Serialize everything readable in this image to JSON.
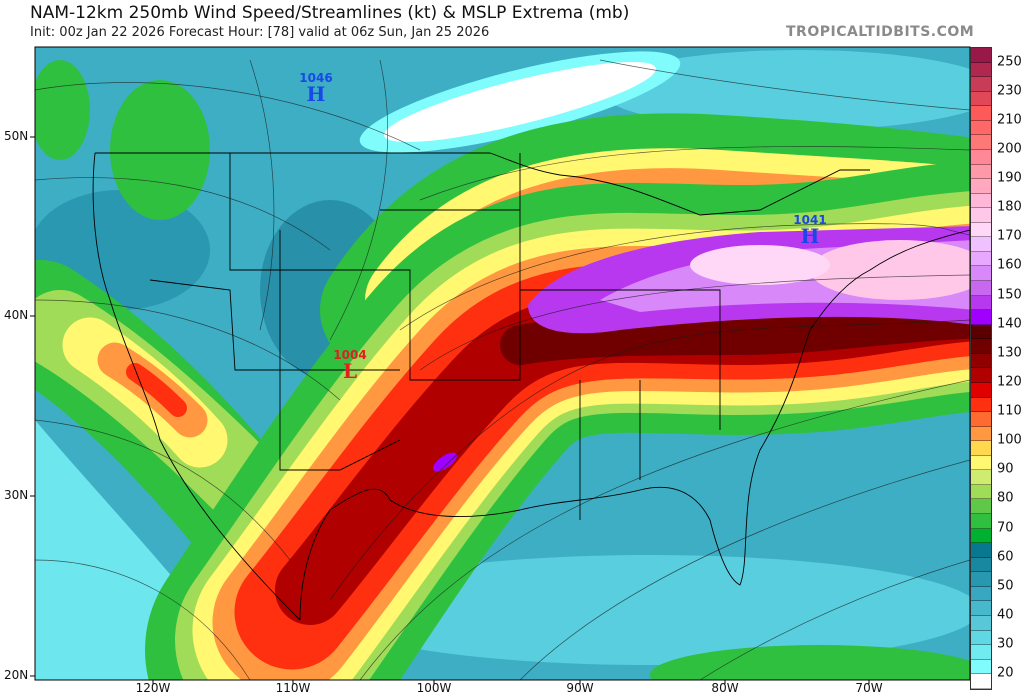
{
  "header": {
    "title": "NAM-12km 250mb Wind Speed/Streamlines (kt) & MSLP Extrema (mb)",
    "subtitle": "Init: 00z Jan 22 2026   Forecast Hour: [78]   valid at 06z Sun, Jan 25 2026",
    "watermark": "TROPICALTIDBITS.COM"
  },
  "axes": {
    "lat_labels": [
      "50N",
      "40N",
      "30N",
      "20N"
    ],
    "lon_labels": [
      "120W",
      "110W",
      "100W",
      "90W",
      "80W",
      "70W"
    ]
  },
  "pressure_centers": [
    {
      "type": "H",
      "value": "1046",
      "color": "#1848e8"
    },
    {
      "type": "L",
      "value": "1004",
      "color": "#e02020"
    },
    {
      "type": "H",
      "value": "1041",
      "color": "#1848e8"
    }
  ],
  "colorbar": {
    "units": "kt",
    "bins": [
      {
        "color": "#981848",
        "label": "250"
      },
      {
        "color": "#b02850",
        "label": ""
      },
      {
        "color": "#c83c58",
        "label": "230"
      },
      {
        "color": "#e04858",
        "label": ""
      },
      {
        "color": "#ff5a5a",
        "label": "210"
      },
      {
        "color": "#ff6868",
        "label": ""
      },
      {
        "color": "#ff7878",
        "label": "200"
      },
      {
        "color": "#ff8898",
        "label": ""
      },
      {
        "color": "#ff98a8",
        "label": "190"
      },
      {
        "color": "#ffa8c0",
        "label": ""
      },
      {
        "color": "#ffb8d8",
        "label": "180"
      },
      {
        "color": "#ffc8e8",
        "label": ""
      },
      {
        "color": "#ffd8f8",
        "label": "170"
      },
      {
        "color": "#f0c0ff",
        "label": ""
      },
      {
        "color": "#e8a8ff",
        "label": "160"
      },
      {
        "color": "#d888f8",
        "label": ""
      },
      {
        "color": "#c868f0",
        "label": "150"
      },
      {
        "color": "#b838f0",
        "label": ""
      },
      {
        "color": "#a000ff",
        "label": "140"
      },
      {
        "color": "#5a0000",
        "label": ""
      },
      {
        "color": "#700000",
        "label": "130"
      },
      {
        "color": "#900000",
        "label": ""
      },
      {
        "color": "#b00000",
        "label": "120"
      },
      {
        "color": "#e00000",
        "label": ""
      },
      {
        "color": "#ff3010",
        "label": "110"
      },
      {
        "color": "#ff6a30",
        "label": ""
      },
      {
        "color": "#ff9840",
        "label": "100"
      },
      {
        "color": "#ffd850",
        "label": ""
      },
      {
        "color": "#fff870",
        "label": "90"
      },
      {
        "color": "#d0ec70",
        "label": ""
      },
      {
        "color": "#a0dc58",
        "label": "80"
      },
      {
        "color": "#60c848",
        "label": ""
      },
      {
        "color": "#30c040",
        "label": "70"
      },
      {
        "color": "#00b030",
        "label": ""
      },
      {
        "color": "#087890",
        "label": "60"
      },
      {
        "color": "#1888a0",
        "label": ""
      },
      {
        "color": "#2898b0",
        "label": "50"
      },
      {
        "color": "#38a8c0",
        "label": ""
      },
      {
        "color": "#48b8cc",
        "label": "40"
      },
      {
        "color": "#58c8d8",
        "label": ""
      },
      {
        "color": "#60d8e4",
        "label": "30"
      },
      {
        "color": "#70ecf0",
        "label": ""
      },
      {
        "color": "#80fcfc",
        "label": "20"
      },
      {
        "color": "#ffffff",
        "label": ""
      }
    ]
  }
}
